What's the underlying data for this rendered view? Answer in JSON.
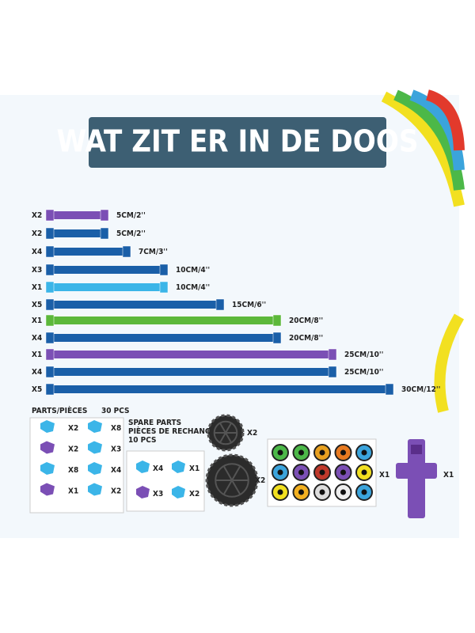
{
  "title": "WAT ZIT ER IN DE DOOS",
  "rods": [
    {
      "quantity": "X2",
      "size": "5CM/2''",
      "color": "#7b4fb5"
    },
    {
      "quantity": "X2",
      "size": "5CM/2''",
      "color": "#1a5fa8"
    },
    {
      "quantity": "X4",
      "size": "7CM/3''",
      "color": "#1a5fa8"
    },
    {
      "quantity": "X3",
      "size": "10CM/4''",
      "color": "#1a5fa8"
    },
    {
      "quantity": "X1",
      "size": "10CM/4''",
      "color": "#3bb5e8"
    },
    {
      "quantity": "X5",
      "size": "15CM/6''",
      "color": "#1a5fa8"
    },
    {
      "quantity": "X1",
      "size": "20CM/8''",
      "color": "#5cb83a"
    },
    {
      "quantity": "X4",
      "size": "20CM/8''",
      "color": "#1a5fa8"
    },
    {
      "quantity": "X1",
      "size": "25CM/10''",
      "color": "#7b4fb5"
    },
    {
      "quantity": "X4",
      "size": "25CM/10''",
      "color": "#1a5fa8"
    },
    {
      "quantity": "X5",
      "size": "30CM/12''",
      "color": "#1a5fa8"
    }
  ],
  "parts": {
    "heading": "PARTS/PIÈCES",
    "count": "30 PCS",
    "quantities": [
      "X2",
      "X8",
      "X2",
      "X3",
      "X8",
      "X4",
      "X1",
      "X2"
    ]
  },
  "spare_parts": {
    "heading_lines": [
      "SPARE PARTS",
      "PIÈCES DE RECHANGE",
      "10 PCS"
    ],
    "quantities": [
      "X4",
      "X1",
      "X3",
      "X2"
    ]
  },
  "wheels": [
    "X2",
    "X2"
  ],
  "eyes": {
    "quantity": "X1"
  },
  "figure": {
    "quantity": "X1"
  }
}
